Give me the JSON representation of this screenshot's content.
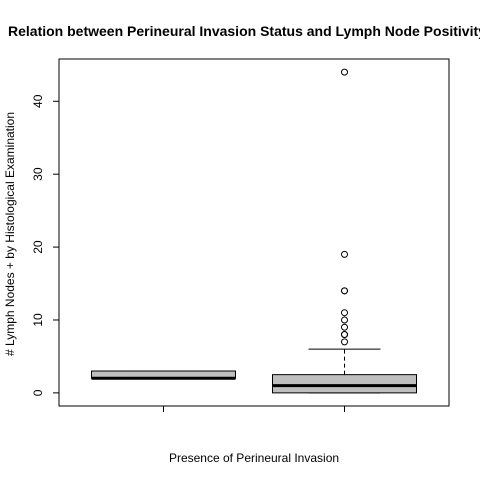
{
  "chart_data": {
    "type": "box",
    "title": "Relation between Perineural Invasion Status and Lymph Node Positivity",
    "xlabel": "Presence of Perineural Invasion",
    "ylabel": "# Lymph Nodes + by Histological Examination",
    "ylim": [
      -1.8,
      45.8
    ],
    "yticks": [
      0,
      10,
      20,
      30,
      40
    ],
    "grid": false,
    "box_fill": "#bfbfbf",
    "groups": [
      {
        "category": "",
        "whisker_low": 2,
        "q1": 2,
        "median": 2,
        "q3": 3,
        "whisker_high": 3,
        "outliers": []
      },
      {
        "category": "",
        "whisker_low": 0,
        "q1": 0,
        "median": 1,
        "q3": 2.5,
        "whisker_high": 6,
        "outliers": [
          7,
          8,
          8,
          9,
          10,
          11,
          14,
          14,
          19,
          44
        ]
      }
    ]
  }
}
